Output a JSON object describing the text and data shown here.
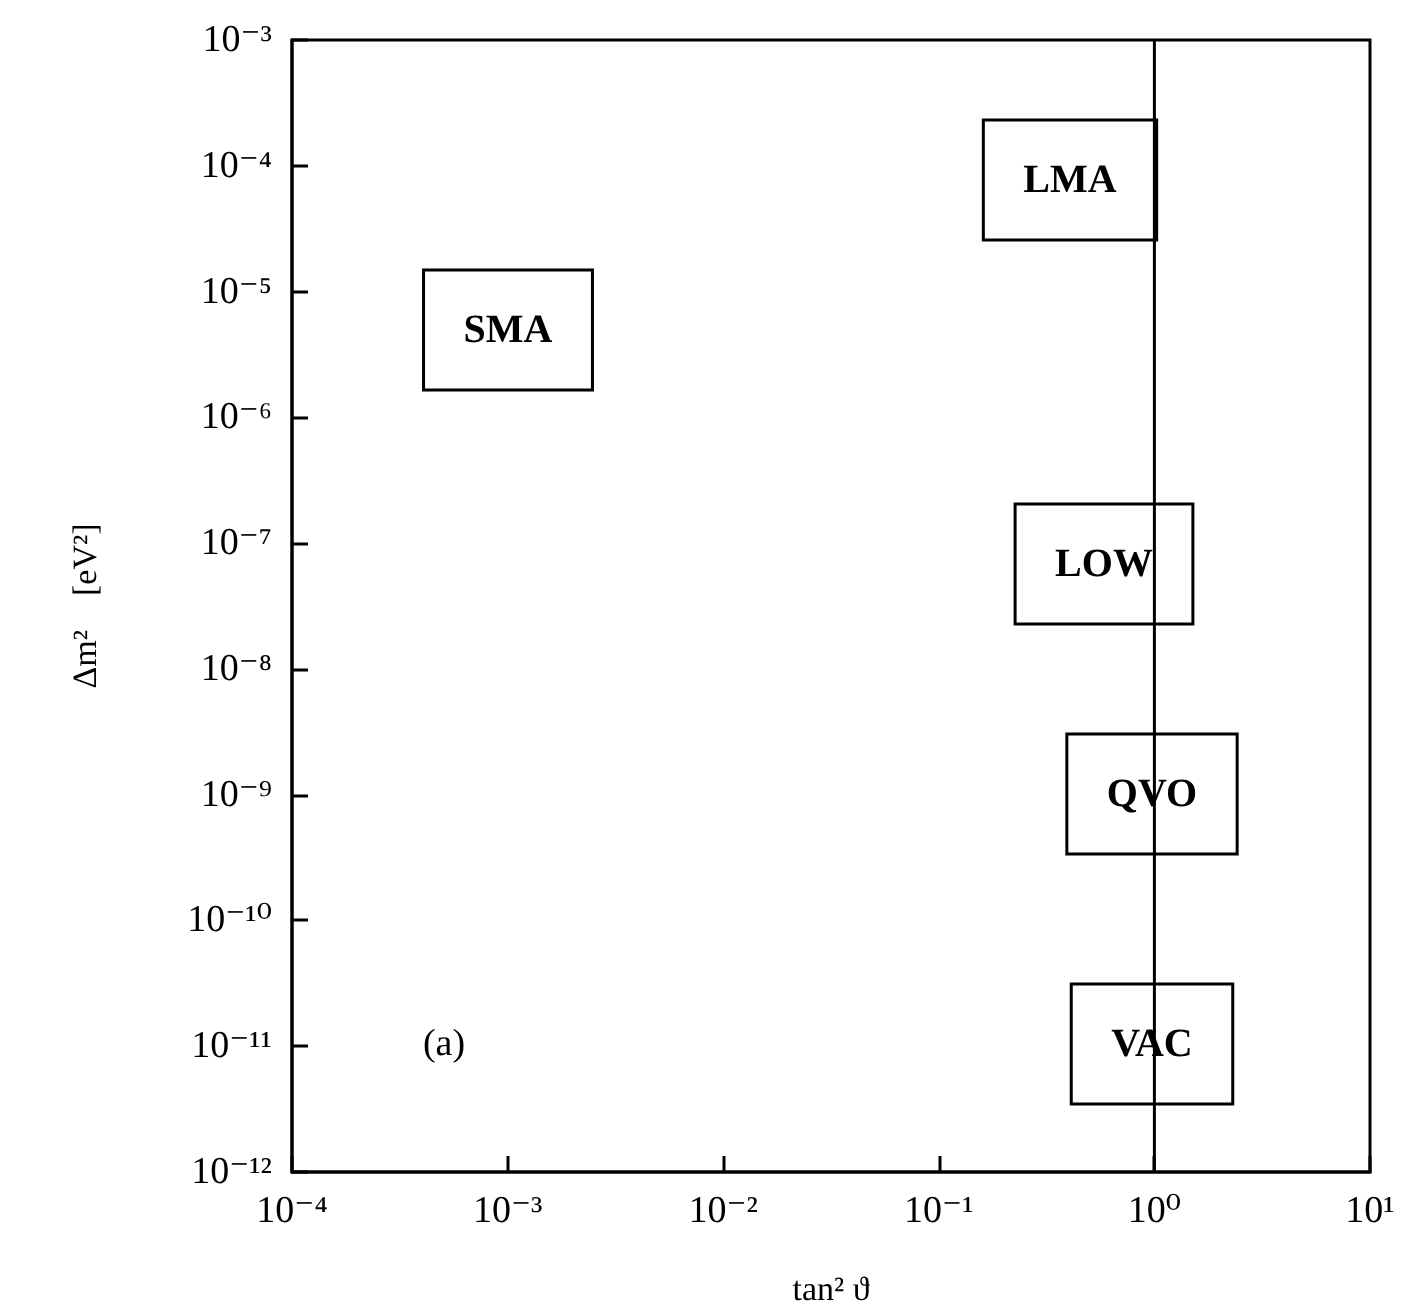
{
  "chart_data": {
    "type": "scatter",
    "xlabel": "tan² ϑ",
    "ylabel": "Δm²    [eV²]",
    "log": "xy",
    "grid": false,
    "xlim": [
      0.0001,
      10
    ],
    "ylim": [
      1e-12,
      0.001
    ],
    "xticks": [
      {
        "value": 0.0001,
        "label": "10⁻⁴"
      },
      {
        "value": 0.001,
        "label": "10⁻³"
      },
      {
        "value": 0.01,
        "label": "10⁻²"
      },
      {
        "value": 0.1,
        "label": "10⁻¹"
      },
      {
        "value": 1,
        "label": "10⁰"
      },
      {
        "value": 10,
        "label": "10¹"
      }
    ],
    "yticks": [
      {
        "value": 1e-12,
        "label": "10⁻¹²"
      },
      {
        "value": 1e-11,
        "label": "10⁻¹¹"
      },
      {
        "value": 1e-10,
        "label": "10⁻¹⁰"
      },
      {
        "value": 1e-09,
        "label": "10⁻⁹"
      },
      {
        "value": 1e-08,
        "label": "10⁻⁸"
      },
      {
        "value": 1e-07,
        "label": "10⁻⁷"
      },
      {
        "value": 1e-06,
        "label": "10⁻⁶"
      },
      {
        "value": 1e-05,
        "label": "10⁻⁵"
      },
      {
        "value": 0.0001,
        "label": "10⁻⁴"
      },
      {
        "value": 0.001,
        "label": "10⁻³"
      }
    ],
    "ref_lines": [
      {
        "axis": "x",
        "value": 1,
        "label": null,
        "color": "#000000"
      }
    ],
    "annotations": [
      "SMA",
      "LMA",
      "LOW",
      "QVO",
      "VAC",
      "(a)"
    ]
  }
}
